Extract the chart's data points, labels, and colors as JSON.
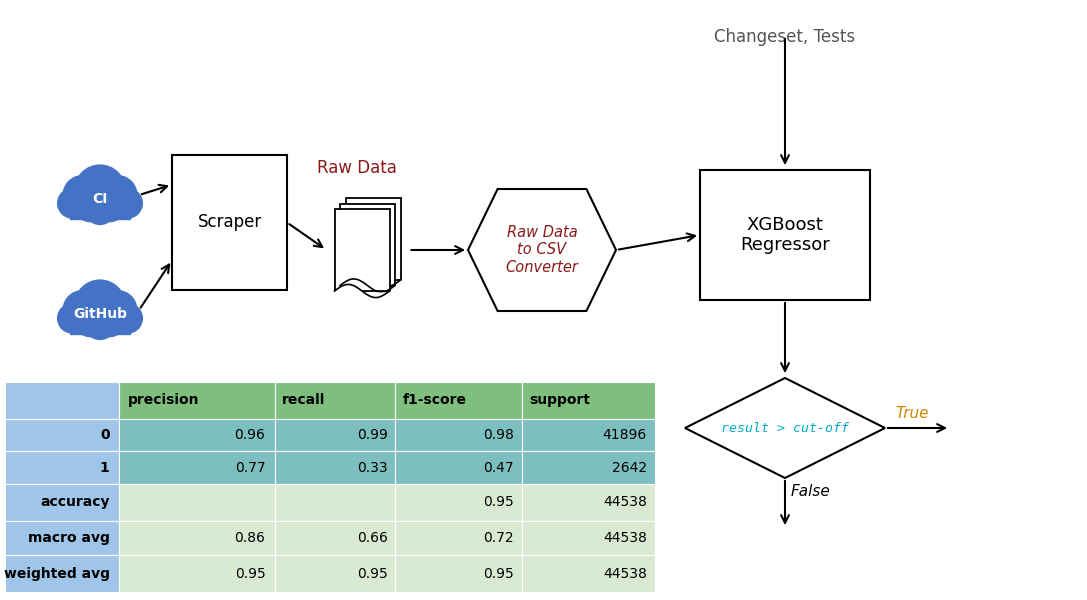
{
  "bg_color": "#ffffff",
  "title_text": "Changeset, Tests",
  "title_color": "#555555",
  "cloud_color": "#4472C4",
  "cloud_ci_label": "CI",
  "cloud_github_label": "GitHub",
  "scraper_label": "Scraper",
  "rawdata_label": "Raw Data",
  "rawdata_label_color": "#8B1A1A",
  "converter_label": "Raw Data\nto CSV\nConverter",
  "converter_label_color": "#8B1A1A",
  "xgboost_label": "XGBoost\nRegressor",
  "diamond_label": "result > cut-off",
  "diamond_label_color": "#00AACC",
  "true_label": "True",
  "true_label_color": "#CC8800",
  "false_label": "False",
  "false_label_color": "#000000",
  "header_bg": "#7EBF7E",
  "row_data_bg": "#7DBFBF",
  "row_light_bg": "#D9EAD3",
  "label_bg": "#9FC5E8",
  "rows_info": [
    {
      "label": "0",
      "vals": [
        "0.96",
        "0.99",
        "0.98",
        "41896"
      ],
      "data_bg": "#7DBFBF"
    },
    {
      "label": "1",
      "vals": [
        "0.77",
        "0.33",
        "0.47",
        "2642"
      ],
      "data_bg": "#7DBFBF"
    },
    {
      "label": "accuracy",
      "vals": [
        "",
        "",
        "0.95",
        "44538"
      ],
      "data_bg": "#D9EAD3"
    },
    {
      "label": "macro avg",
      "vals": [
        "0.86",
        "0.66",
        "0.72",
        "44538"
      ],
      "data_bg": "#D9EAD3"
    },
    {
      "label": "weighted avg",
      "vals": [
        "0.95",
        "0.95",
        "0.95",
        "44538"
      ],
      "data_bg": "#D9EAD3"
    }
  ],
  "col_labels": [
    "",
    "precision",
    "recall",
    "f1-score",
    "support"
  ]
}
